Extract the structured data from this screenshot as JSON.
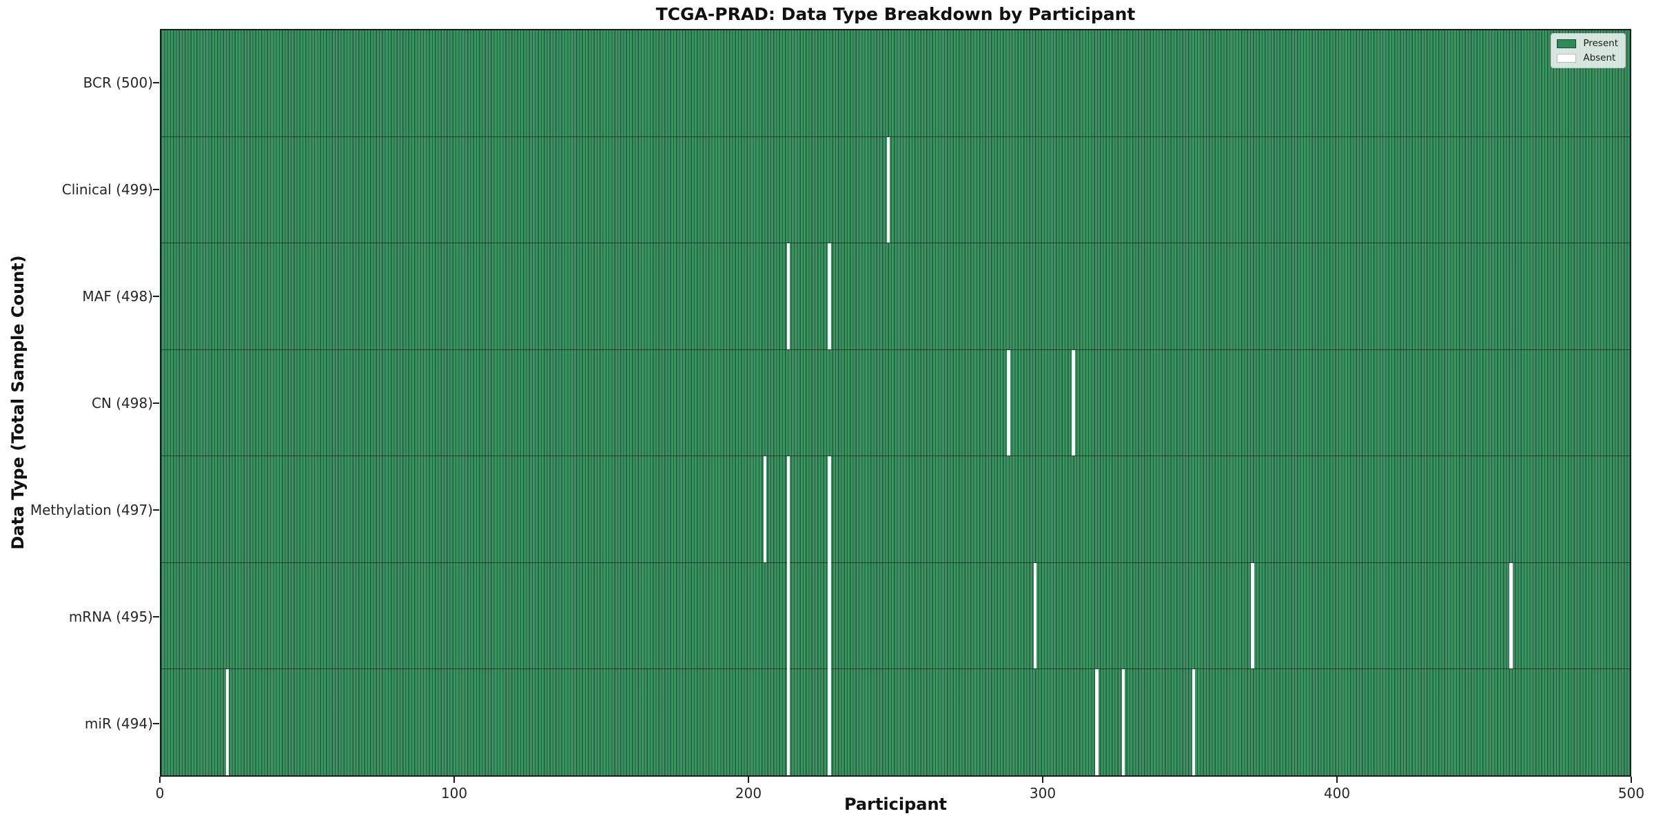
{
  "chart_data": {
    "type": "heatmap",
    "title": "TCGA-PRAD: Data Type Breakdown by Participant",
    "xlabel": "Participant",
    "ylabel": "Data Type (Total Sample Count)",
    "x_ticks": [
      0,
      100,
      200,
      300,
      400,
      500
    ],
    "x_range": [
      0,
      500
    ],
    "n_participants": 500,
    "grid": false,
    "colors": {
      "present": "#38915f",
      "present_legend": "#2e8b57",
      "absent": "#ffffff",
      "cell_edge": "rgba(14,48,30,0.55)"
    },
    "legend": {
      "position": "upper right",
      "entries": [
        {
          "label": "Present",
          "color": "#2e8b57"
        },
        {
          "label": "Absent",
          "color": "#ffffff"
        }
      ]
    },
    "rows": [
      {
        "label": "BCR (500)",
        "data_type": "BCR",
        "total": 500,
        "absent_participants": []
      },
      {
        "label": "Clinical (499)",
        "data_type": "Clinical",
        "total": 499,
        "absent_participants": [
          247
        ]
      },
      {
        "label": "MAF (498)",
        "data_type": "MAF",
        "total": 498,
        "absent_participants": [
          213,
          227
        ]
      },
      {
        "label": "CN (498)",
        "data_type": "CN",
        "total": 498,
        "absent_participants": [
          288,
          310
        ]
      },
      {
        "label": "Methylation (497)",
        "data_type": "Methylation",
        "total": 497,
        "absent_participants": [
          205,
          213,
          227
        ]
      },
      {
        "label": "mRNA (495)",
        "data_type": "mRNA",
        "total": 495,
        "absent_participants": [
          213,
          227,
          297,
          371,
          459
        ]
      },
      {
        "label": "miR (494)",
        "data_type": "miR",
        "total": 494,
        "absent_participants": [
          22,
          213,
          227,
          318,
          327,
          351
        ]
      }
    ]
  }
}
